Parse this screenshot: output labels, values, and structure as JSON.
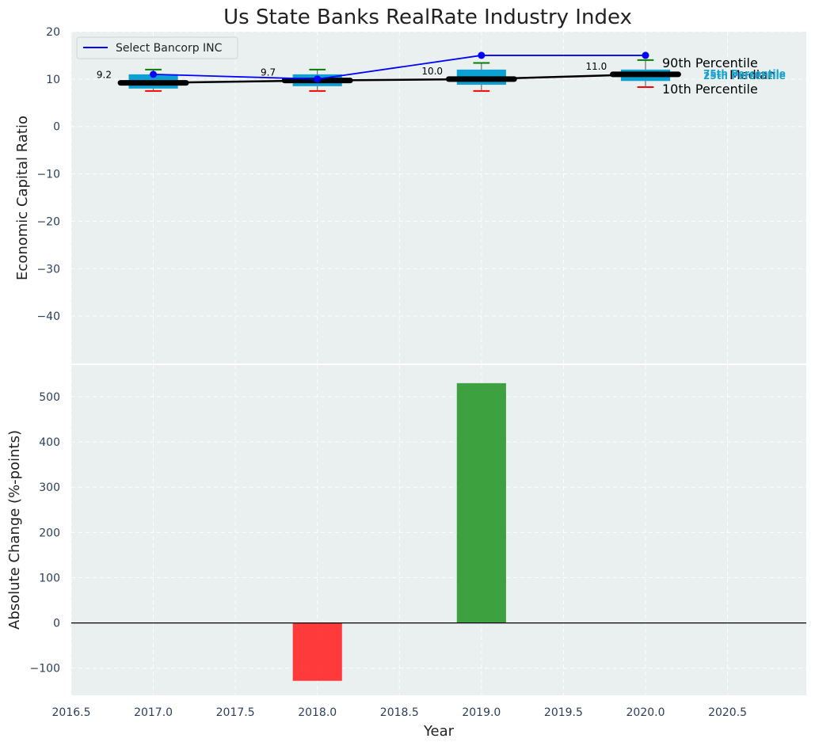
{
  "chart_data": {
    "title": "Us State Banks RealRate Industry Index",
    "xlabel": "Year",
    "colors": {
      "plot_bg": "#eaeff0",
      "box": "#0da0d2",
      "company_line": "#0000ff",
      "median_line": "#000000",
      "whisker_high": "#008000",
      "whisker_low": "#ff0000",
      "bar_positive": "#2e9a30",
      "bar_negative": "#ff2a2a",
      "quartile_label": "#1aa3d0"
    },
    "top": {
      "type": "box",
      "ylabel": "Economic Capital Ratio",
      "ylim": [
        -50,
        20
      ],
      "yticks": [
        20,
        10,
        0,
        -10,
        -20,
        -30,
        -40
      ],
      "ytick_labels": [
        "20",
        "10",
        "0",
        "−10",
        "−20",
        "−30",
        "−40"
      ],
      "years": [
        2017,
        2018,
        2019,
        2020
      ],
      "p10": [
        7.5,
        7.5,
        7.5,
        8.3
      ],
      "q25": [
        8.0,
        8.5,
        8.8,
        9.6
      ],
      "median": [
        9.2,
        9.7,
        10.0,
        11.0
      ],
      "q75": [
        11.0,
        11.0,
        12.0,
        12.0
      ],
      "p90": [
        12.0,
        12.0,
        13.4,
        14.0
      ],
      "median_labels": [
        "9.2",
        "9.7",
        "10.0",
        "11.0"
      ],
      "company_name": "Select Bancorp INC",
      "company_values": [
        11.0,
        10.0,
        15.0,
        15.0
      ],
      "legend_position": "upper-left",
      "annotations": {
        "p90": "90th Percentile",
        "median": "Median",
        "p10": "10th Percentile",
        "q75": "75th Percentile",
        "q25": "25th Percentile"
      }
    },
    "bottom": {
      "type": "bar",
      "ylabel": "Absolute Change (%-points)",
      "ylim": [
        -160,
        570
      ],
      "yticks": [
        500,
        400,
        300,
        200,
        100,
        0,
        -100
      ],
      "ytick_labels": [
        "500",
        "400",
        "300",
        "200",
        "100",
        "0",
        "−100"
      ],
      "x": [
        2018,
        2019
      ],
      "values": [
        -128,
        530
      ]
    },
    "xlim": [
      2016.5,
      2020.98
    ],
    "xticks": [
      2016.5,
      2017.0,
      2017.5,
      2018.0,
      2018.5,
      2019.0,
      2019.5,
      2020.0,
      2020.5
    ],
    "xtick_labels": [
      "2016.5",
      "2017.0",
      "2017.5",
      "2018.0",
      "2018.5",
      "2019.0",
      "2019.5",
      "2020.0",
      "2020.5"
    ]
  }
}
